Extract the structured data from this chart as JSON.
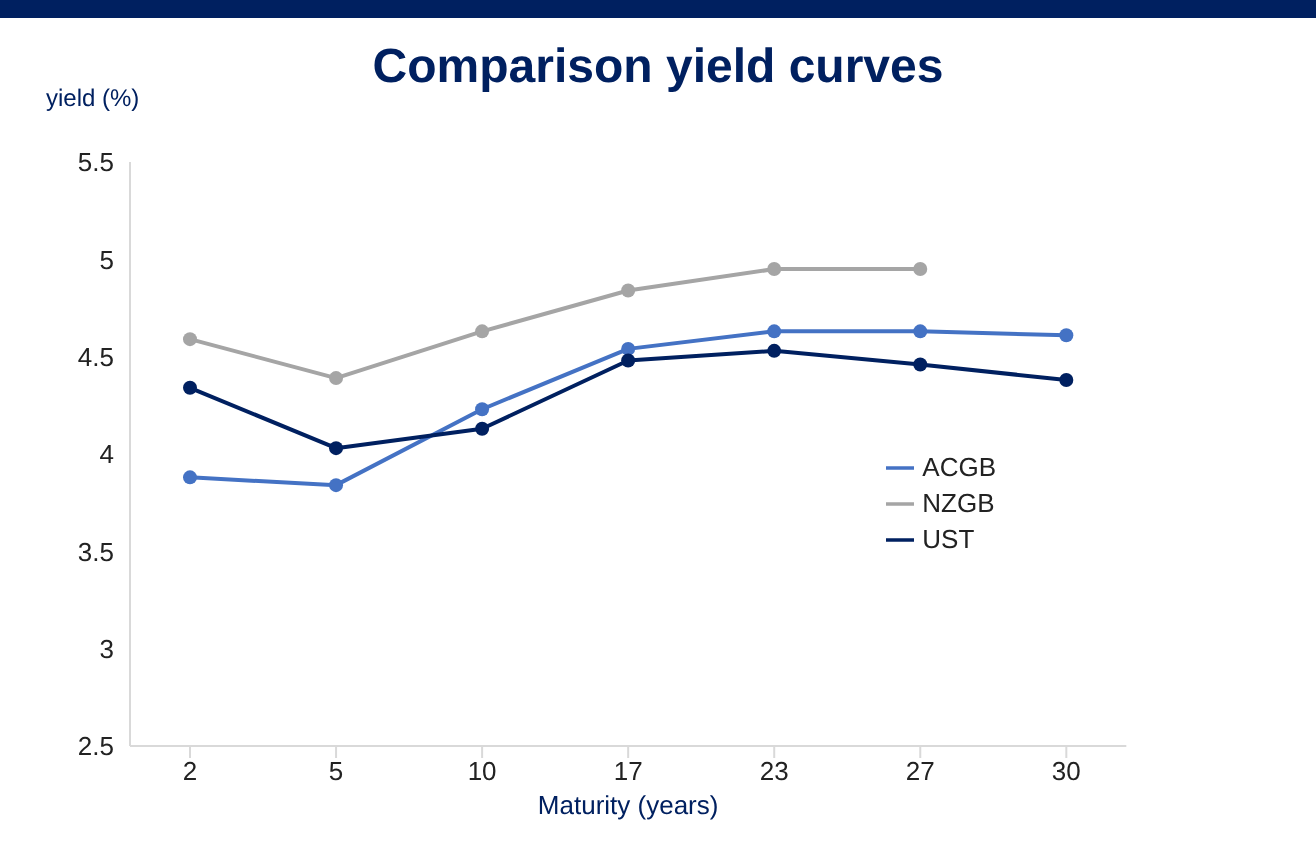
{
  "chart_data": {
    "type": "line",
    "title": "Comparison yield curves",
    "ylabel": "yield (%)",
    "xlabel": "Maturity (years)",
    "categories": [
      "2",
      "5",
      "10",
      "17",
      "23",
      "27",
      "30"
    ],
    "series": [
      {
        "name": "ACGB",
        "color": "#4472c4",
        "values": [
          3.88,
          3.84,
          4.23,
          4.54,
          4.63,
          4.63,
          4.61
        ]
      },
      {
        "name": "UST",
        "color": "#002060",
        "values": [
          4.34,
          4.03,
          4.13,
          4.48,
          4.53,
          4.46,
          4.38
        ]
      },
      {
        "name": "NZGB",
        "color": "#a5a5a5",
        "values": [
          4.59,
          4.39,
          4.63,
          4.84,
          4.95,
          4.95,
          null
        ]
      }
    ],
    "ylim": [
      2.5,
      5.5
    ],
    "yticks": [
      2.5,
      3,
      3.5,
      4,
      4.5,
      5,
      5.5
    ],
    "grid": false,
    "legend": "right",
    "marker": "circle",
    "line_style": "solid"
  }
}
